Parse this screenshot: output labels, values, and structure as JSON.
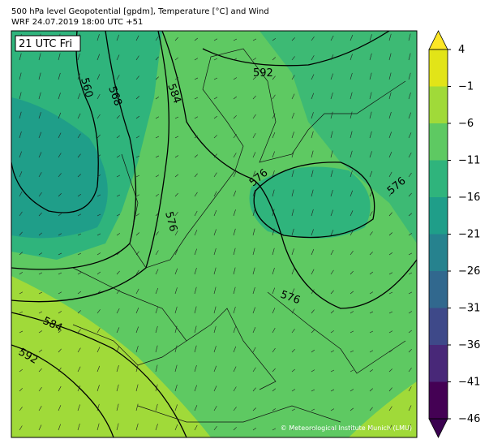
{
  "header": {
    "title": "500 hPa level Geopotential [gpdm], Temperature [°C] and Wind",
    "subtitle": "WRF 24.07.2019 18:00 UTC +51"
  },
  "map": {
    "time_label": "21 UTC Fri",
    "contour_labels": [
      "560",
      "568",
      "584",
      "592",
      "576",
      "576",
      "576",
      "576",
      "584",
      "592"
    ],
    "credit": "© Meteorological Institute Munich (LMU)"
  },
  "colorbar": {
    "ticks": [
      "4",
      "−1",
      "−6",
      "−11",
      "−16",
      "−21",
      "−26",
      "−31",
      "−36",
      "−41",
      "−46"
    ],
    "colors": [
      "#fde725",
      "#e2e418",
      "#a0da39",
      "#5ec962",
      "#2fb47c",
      "#1f9e89",
      "#26828e",
      "#31688e",
      "#3e4989",
      "#482878",
      "#440154",
      "#3b0250"
    ]
  }
}
